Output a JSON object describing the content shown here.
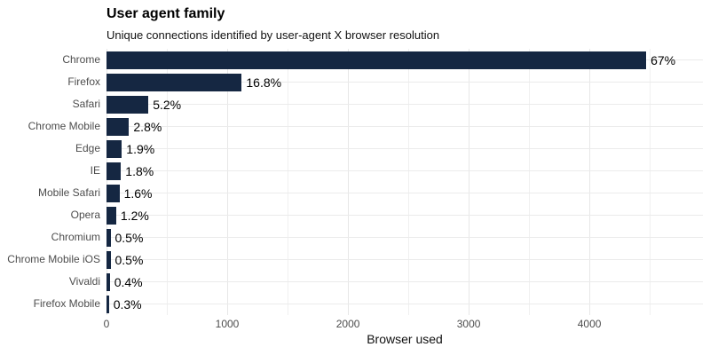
{
  "chart_data": {
    "type": "bar",
    "orientation": "horizontal",
    "title": "User agent family",
    "subtitle": "Unique connections identified by user-agent X browser resolution",
    "xlabel": "Browser used",
    "ylabel": "",
    "categories": [
      "Chrome",
      "Firefox",
      "Safari",
      "Chrome Mobile",
      "Edge",
      "IE",
      "Mobile Safari",
      "Opera",
      "Chromium",
      "Chrome Mobile iOS",
      "Vivaldi",
      "Firefox Mobile"
    ],
    "values": [
      4470,
      1120,
      347,
      187,
      127,
      120,
      107,
      80,
      33,
      33,
      27,
      20
    ],
    "labels": [
      "67%",
      "16.8%",
      "5.2%",
      "2.8%",
      "1.9%",
      "1.8%",
      "1.6%",
      "1.2%",
      "0.5%",
      "0.5%",
      "0.4%",
      "0.3%"
    ],
    "xlim": [
      0,
      4940
    ],
    "xticks": [
      0,
      1000,
      2000,
      3000,
      4000
    ],
    "minor_grid_step": 500,
    "grid": true,
    "legend": false
  },
  "colors": {
    "bar": "#152742",
    "grid_major": "#e7e7e7",
    "grid_minor": "#f0f0f0",
    "tick_text": "#4d4d4d",
    "label_text": "#000000"
  }
}
